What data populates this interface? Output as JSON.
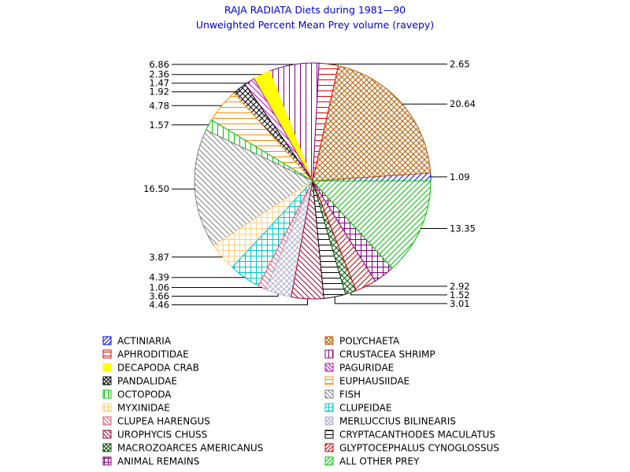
{
  "chart_data": {
    "type": "pie",
    "title": "RAJA RADIATA Diets during 1981—90",
    "subtitle": "Unweighted Percent Mean Prey volume (ravepy)",
    "start_angle_deg": 0,
    "direction": "counterclockwise",
    "legend_position": "bottom",
    "slices": [
      {
        "name": "ACTINIARIA",
        "value": 1.09,
        "label": "1.09",
        "color": "#0000ff",
        "pattern": "hatch-45"
      },
      {
        "name": "POLYCHAETA",
        "value": 20.64,
        "label": "20.64",
        "color": "#b85c00",
        "pattern": "crosshatch-diag"
      },
      {
        "name": "APHRODITIDAE",
        "value": 2.65,
        "label": "2.65",
        "color": "#e00000",
        "pattern": "horizontal"
      },
      {
        "name": "CRUSTACEA SHRIMP",
        "value": 6.86,
        "label": "6.86",
        "color": "#800080",
        "pattern": "vertical"
      },
      {
        "name": "DECAPODA CRAB",
        "value": 2.36,
        "label": "2.36",
        "color": "#ffff00",
        "pattern": "solid"
      },
      {
        "name": "PAGURIDAE",
        "value": 1.47,
        "label": "1.47",
        "color": "#c000c0",
        "pattern": "hatch-135"
      },
      {
        "name": "PANDALIDAE",
        "value": 1.92,
        "label": "1.92",
        "color": "#000000",
        "pattern": "crosshatch-diag"
      },
      {
        "name": "EUPHAUSIIDAE",
        "value": 4.78,
        "label": "4.78",
        "color": "#ff8c00",
        "pattern": "horizontal"
      },
      {
        "name": "OCTOPODA",
        "value": 1.57,
        "label": "1.57",
        "color": "#00c000",
        "pattern": "vertical"
      },
      {
        "name": "FISH",
        "value": 16.5,
        "label": "16.50",
        "color": "#808080",
        "pattern": "hatch-135"
      },
      {
        "name": "MYXINIDAE",
        "value": 3.87,
        "label": "3.87",
        "color": "#ffd080",
        "pattern": "grid"
      },
      {
        "name": "CLUPEIDAE",
        "value": 4.39,
        "label": "4.39",
        "color": "#00c8c8",
        "pattern": "grid"
      },
      {
        "name": "CLUPEA HARENGUS",
        "value": 1.06,
        "label": "1.06",
        "color": "#e05070",
        "pattern": "hatch-135"
      },
      {
        "name": "MERLUCCIUS BILINEARIS",
        "value": 3.66,
        "label": "3.66",
        "color": "#b0b0d0",
        "pattern": "crosshatch-diag"
      },
      {
        "name": "UROPHYCIS CHUSS",
        "value": 4.46,
        "label": "4.46",
        "color": "#a00030",
        "pattern": "hatch-135"
      },
      {
        "name": "CRYPTACANTHODES MACULATUS",
        "value": 3.01,
        "label": "3.01",
        "color": "#000000",
        "pattern": "horizontal"
      },
      {
        "name": "MACROZOARCES AMERICANUS",
        "value": 1.52,
        "label": "1.52",
        "color": "#005000",
        "pattern": "crosshatch-diag"
      },
      {
        "name": "GLYPTOCEPHALUS CYNOGLOSSUS",
        "value": 2.92,
        "label": "2.92",
        "color": "#c00000",
        "pattern": "hatch-45"
      },
      {
        "name": "ANIMAL REMAINS",
        "value": 2.92,
        "label": "",
        "color": "#800080",
        "pattern": "grid"
      },
      {
        "name": "ALL OTHER PREY",
        "value": 13.35,
        "label": "13.35",
        "color": "#00c000",
        "pattern": "hatch-45"
      }
    ],
    "legend_order": [
      "ACTINIARIA",
      "POLYCHAETA",
      "APHRODITIDAE",
      "CRUSTACEA SHRIMP",
      "DECAPODA CRAB",
      "PAGURIDAE",
      "PANDALIDAE",
      "EUPHAUSIIDAE",
      "OCTOPODA",
      "FISH",
      "MYXINIDAE",
      "CLUPEIDAE",
      "CLUPEA HARENGUS",
      "MERLUCCIUS BILINEARIS",
      "UROPHYCIS CHUSS",
      "CRYPTACANTHODES MACULATUS",
      "MACROZOARCES AMERICANUS",
      "GLYPTOCEPHALUS CYNOGLOSSUS",
      "ANIMAL REMAINS",
      "ALL OTHER PREY"
    ]
  }
}
